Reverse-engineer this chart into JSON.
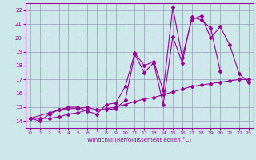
{
  "xlabel": "Windchill (Refroidissement éolien,°C)",
  "ylabel": "",
  "xlim": [
    -0.5,
    23.5
  ],
  "ylim": [
    13.5,
    22.5
  ],
  "yticks": [
    14,
    15,
    16,
    17,
    18,
    19,
    20,
    21,
    22
  ],
  "xticks": [
    0,
    1,
    2,
    3,
    4,
    5,
    6,
    7,
    8,
    9,
    10,
    11,
    12,
    13,
    14,
    15,
    16,
    17,
    18,
    19,
    20,
    21,
    22,
    23
  ],
  "background_color": "#cce8e8",
  "grid_color": "#9999bb",
  "line_color": "#990099",
  "line1_x": [
    0,
    1,
    2,
    3,
    4,
    5,
    6,
    7,
    8,
    9,
    10,
    11,
    12,
    13,
    14,
    15,
    16,
    17,
    18,
    19,
    20,
    21,
    22,
    23
  ],
  "line1_y": [
    14.2,
    14.2,
    14.2,
    14.3,
    14.5,
    14.6,
    14.8,
    14.8,
    14.9,
    15.0,
    15.2,
    15.4,
    15.6,
    15.7,
    15.9,
    16.1,
    16.3,
    16.5,
    16.6,
    16.7,
    16.8,
    16.9,
    17.0,
    17.0
  ],
  "line2_x": [
    0,
    1,
    2,
    3,
    4,
    5,
    6,
    7,
    8,
    9,
    10,
    11,
    12,
    13,
    14,
    15,
    16,
    17,
    18,
    19,
    20,
    21,
    22,
    23
  ],
  "line2_y": [
    14.2,
    14.0,
    14.5,
    14.8,
    14.9,
    14.9,
    15.0,
    14.8,
    14.8,
    14.9,
    15.5,
    18.8,
    17.5,
    18.2,
    15.2,
    20.1,
    18.2,
    21.5,
    21.3,
    20.7,
    17.6,
    null,
    null,
    null
  ],
  "line3_x": [
    0,
    2,
    3,
    4,
    5,
    6,
    7,
    8,
    9,
    10,
    11,
    12,
    13,
    14,
    15,
    16,
    17,
    18,
    19,
    20,
    21,
    22,
    23
  ],
  "line3_y": [
    14.2,
    14.6,
    14.8,
    15.0,
    15.0,
    14.7,
    14.5,
    15.2,
    15.3,
    16.5,
    18.9,
    18.0,
    18.3,
    16.2,
    22.2,
    18.6,
    21.3,
    21.6,
    20.0,
    20.8,
    19.5,
    17.4,
    16.8
  ]
}
